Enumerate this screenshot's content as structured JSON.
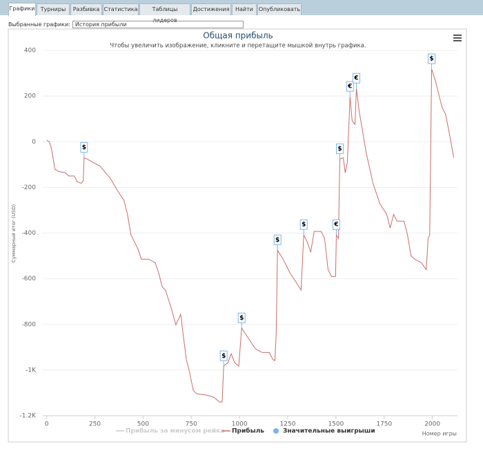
{
  "tabs": [
    "Графики",
    "Турниры",
    "Разбивка",
    "Статистика",
    "Таблицы лидеров",
    "Достижения",
    "Найти",
    "Опубликовать"
  ],
  "selector": {
    "label": "Выбранные графики:",
    "value": "История прибыли"
  },
  "chart_data": {
    "type": "line",
    "title": "Общая прибыль",
    "subtitle": "Чтобы увеличить изображение, кликните и перетащите мышкой внутрь графика.",
    "y_label": "Суммарный итог (USD)",
    "x_label": "Номер игры",
    "xlim": [
      -20,
      2130
    ],
    "xticks": [
      0,
      250,
      500,
      750,
      1000,
      1250,
      1500,
      1750,
      2000
    ],
    "ylim": [
      -1200,
      400
    ],
    "yticks": [
      {
        "value": -1200,
        "label": "-1.2K"
      },
      {
        "value": -1000,
        "label": "-1K"
      },
      -800,
      -600,
      -400,
      -200,
      0,
      200,
      400
    ],
    "grid": true,
    "legend": [
      {
        "name": "Прибыль за минусом рейка",
        "color": "#cccccc",
        "symbol": "line",
        "hidden": true
      },
      {
        "name": "Прибыль",
        "color": "#c96b6b",
        "symbol": "line",
        "hidden": false
      },
      {
        "name": "Значительные выигрыши",
        "color": "#7cb5ec",
        "symbol": "circle",
        "hidden": false
      }
    ],
    "series": [
      {
        "name": "Прибыль",
        "color": "#c96b6b",
        "x": [
          0,
          14,
          25,
          43,
          61,
          97,
          115,
          143,
          158,
          179,
          190,
          194,
          208,
          240,
          276,
          330,
          366,
          401,
          419,
          437,
          473,
          491,
          527,
          563,
          581,
          599,
          616,
          645,
          670,
          695,
          706,
          724,
          742,
          760,
          778,
          832,
          867,
          896,
          910,
          918,
          939,
          957,
          975,
          996,
          1011,
          1047,
          1082,
          1118,
          1154,
          1172,
          1183,
          1190,
          1197,
          1226,
          1262,
          1297,
          1319,
          1333,
          1351,
          1369,
          1387,
          1423,
          1441,
          1459,
          1477,
          1498,
          1502,
          1513,
          1520,
          1538,
          1548,
          1559,
          1573,
          1584,
          1599,
          1606,
          1620,
          1656,
          1692,
          1728,
          1763,
          1781,
          1799,
          1817,
          1853,
          1871,
          1889,
          1907,
          1943,
          1968,
          1978,
          1986,
          1996,
          2014,
          2050,
          2068,
          2086,
          2111
        ],
        "values": [
          6,
          0,
          -30,
          -120,
          -130,
          -136,
          -150,
          -150,
          -175,
          -182,
          -172,
          -70,
          -75,
          -90,
          -106,
          -160,
          -212,
          -257,
          -318,
          -408,
          -469,
          -514,
          -514,
          -530,
          -575,
          -635,
          -650,
          -726,
          -802,
          -756,
          -832,
          -953,
          -1013,
          -1089,
          -1104,
          -1110,
          -1119,
          -1140,
          -1140,
          -983,
          -968,
          -929,
          -968,
          -983,
          -817,
          -862,
          -907,
          -923,
          -923,
          -953,
          -959,
          -847,
          -475,
          -514,
          -575,
          -620,
          -650,
          -408,
          -439,
          -484,
          -393,
          -393,
          -423,
          -560,
          -590,
          -590,
          -408,
          -423,
          -76,
          -70,
          -136,
          -91,
          197,
          91,
          76,
          233,
          136,
          -45,
          -182,
          -272,
          -318,
          -378,
          -318,
          -348,
          -348,
          -408,
          -499,
          -514,
          -530,
          -560,
          -423,
          -408,
          318,
          272,
          151,
          121,
          45,
          -70
        ]
      }
    ],
    "wins": {
      "color": "#7cb5ec",
      "x": [
        194,
        918,
        1011,
        1197,
        1333,
        1502,
        1520,
        1573,
        1606,
        1996
      ],
      "values": [
        -70,
        -983,
        -817,
        -475,
        -408,
        -408,
        -76,
        197,
        233,
        318
      ],
      "labels": [
        "$",
        "$",
        "$",
        "$",
        "$",
        "€",
        "$",
        "€",
        "€",
        "$"
      ]
    }
  }
}
